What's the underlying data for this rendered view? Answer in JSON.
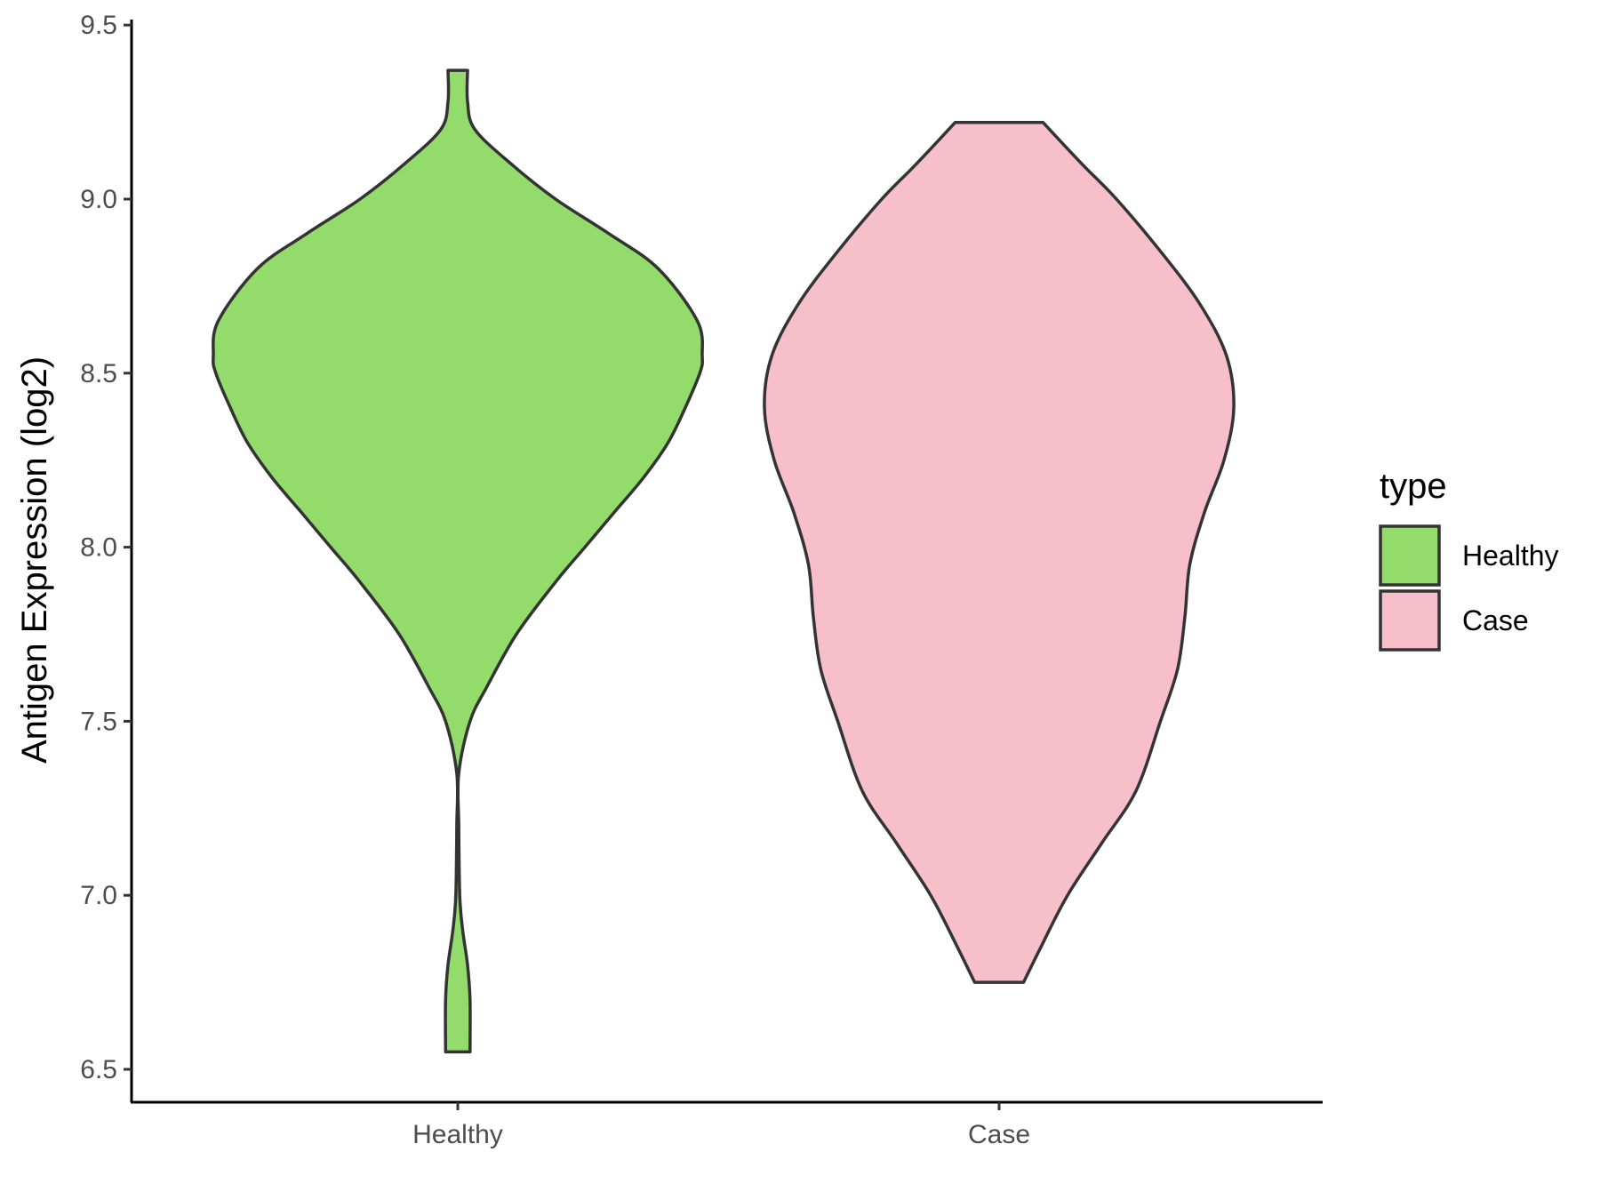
{
  "chart_data": {
    "type": "violin",
    "title": "",
    "xlabel": "",
    "ylabel": "Antigen Expression (log2)",
    "ylim": [
      6.4,
      9.52
    ],
    "yticks": [
      "6.5",
      "7.0",
      "7.5",
      "8.0",
      "8.5",
      "9.0",
      "9.5"
    ],
    "categories": [
      "Healthy",
      "Case"
    ],
    "legend": {
      "title": "type",
      "position": "right",
      "entries": [
        "Healthy",
        "Case"
      ]
    },
    "series": [
      {
        "name": "Healthy",
        "color": "#93DC6B",
        "min": 6.55,
        "max": 9.37,
        "profile": [
          [
            6.55,
            0.05
          ],
          [
            6.7,
            0.05
          ],
          [
            6.8,
            0.04
          ],
          [
            6.9,
            0.02
          ],
          [
            7.0,
            0.008
          ],
          [
            7.2,
            0.004
          ],
          [
            7.35,
            0.004
          ],
          [
            7.5,
            0.05
          ],
          [
            7.6,
            0.12
          ],
          [
            7.75,
            0.24
          ],
          [
            7.9,
            0.4
          ],
          [
            8.0,
            0.52
          ],
          [
            8.1,
            0.64
          ],
          [
            8.2,
            0.76
          ],
          [
            8.3,
            0.86
          ],
          [
            8.4,
            0.93
          ],
          [
            8.5,
            0.99
          ],
          [
            8.55,
            1.0
          ],
          [
            8.65,
            0.98
          ],
          [
            8.8,
            0.82
          ],
          [
            8.9,
            0.62
          ],
          [
            9.0,
            0.4
          ],
          [
            9.1,
            0.22
          ],
          [
            9.2,
            0.07
          ],
          [
            9.28,
            0.04
          ],
          [
            9.37,
            0.04
          ]
        ]
      },
      {
        "name": "Case",
        "color": "#F7BFCA",
        "min": 6.75,
        "max": 9.22,
        "profile": [
          [
            6.75,
            0.1
          ],
          [
            6.85,
            0.17
          ],
          [
            7.0,
            0.28
          ],
          [
            7.15,
            0.42
          ],
          [
            7.3,
            0.56
          ],
          [
            7.5,
            0.66
          ],
          [
            7.65,
            0.73
          ],
          [
            7.8,
            0.76
          ],
          [
            7.95,
            0.78
          ],
          [
            8.1,
            0.84
          ],
          [
            8.25,
            0.92
          ],
          [
            8.4,
            0.96
          ],
          [
            8.55,
            0.93
          ],
          [
            8.7,
            0.82
          ],
          [
            8.85,
            0.66
          ],
          [
            9.0,
            0.48
          ],
          [
            9.1,
            0.34
          ],
          [
            9.22,
            0.18
          ]
        ]
      }
    ]
  }
}
